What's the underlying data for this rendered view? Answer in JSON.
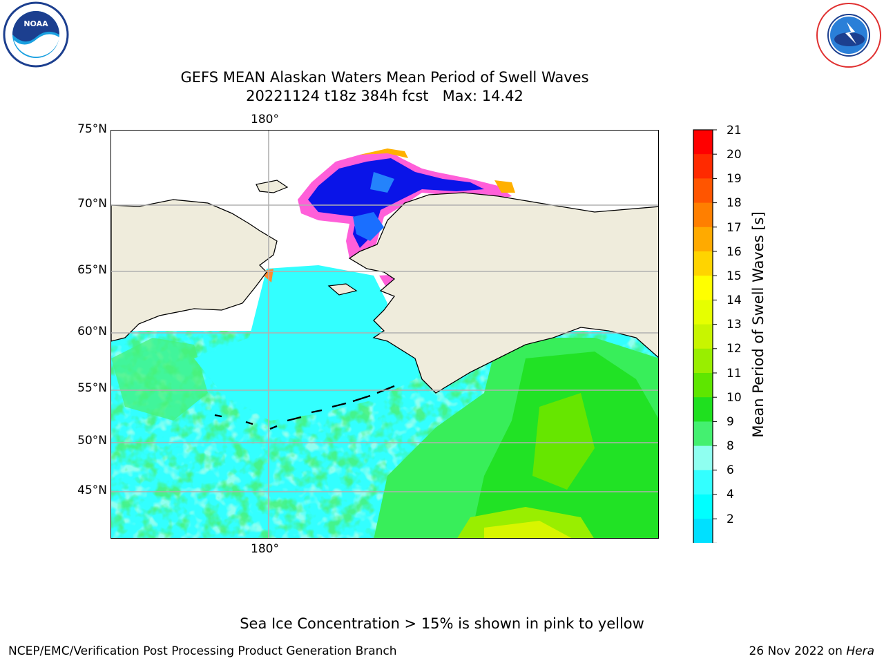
{
  "title": {
    "line1": "GEFS MEAN Alaskan Waters Mean Period of Swell Waves",
    "line2": "20221124 t18z 384h fcst   Max: 14.42"
  },
  "map": {
    "lon_label_top": "180°",
    "lon_label_bottom": "180°",
    "lat_labels": [
      "75°N",
      "70°N",
      "65°N",
      "60°N",
      "55°N",
      "50°N",
      "45°N"
    ],
    "colors": {
      "land": "#efecdc",
      "sea_ice_pink": "#ff5fd9",
      "sea_ice_orange": "#ffb000",
      "grid": "#b0b0b0"
    }
  },
  "colorbar": {
    "title": "Mean Period of Swell Waves [s]",
    "ticks": [
      "21",
      "20",
      "19",
      "18",
      "17",
      "16",
      "15",
      "14",
      "13",
      "12",
      "11",
      "10",
      "9",
      "8",
      "6",
      "4",
      "2"
    ],
    "colors_top_to_bottom": [
      "#ff0000",
      "#ff2a00",
      "#ff5500",
      "#ff7f00",
      "#ffaa00",
      "#ffd400",
      "#ffff00",
      "#e6ff00",
      "#c8f500",
      "#99ee00",
      "#5ee600",
      "#1fe01f",
      "#44f070",
      "#8ffff0",
      "#33ffff",
      "#00ffff",
      "#00e0ff",
      "#007fff",
      "#0000ff"
    ]
  },
  "footnote": "Sea Ice Concentration > 15% is shown in pink to yellow",
  "credit_left": "NCEP/EMC/Verification Post Processing Product Generation Branch",
  "credit_date": "26 Nov 2022 on ",
  "credit_host": "Hera",
  "logos": {
    "left": "noaa-logo-icon",
    "right": "nws-logo-icon"
  }
}
